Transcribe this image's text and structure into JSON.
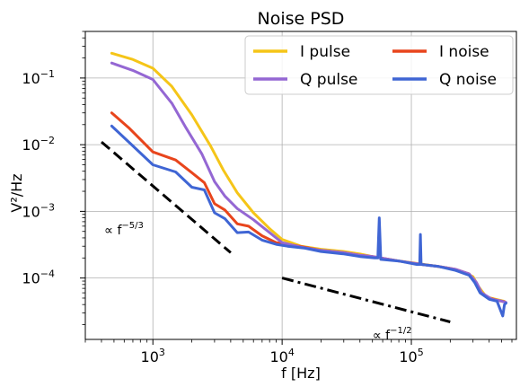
{
  "chart_data": {
    "type": "line",
    "title": "Noise PSD",
    "xlabel": "f [Hz]",
    "ylabel": "V²/Hz",
    "xscale": "log",
    "yscale": "log",
    "xlim": [
      300,
      650000
    ],
    "ylim": [
      1.2e-05,
      0.5
    ],
    "grid": true,
    "legend_position": "top-right",
    "x_ticks": [
      {
        "value": 1000,
        "mantissa": "10",
        "exp": "3"
      },
      {
        "value": 10000,
        "mantissa": "10",
        "exp": "4"
      },
      {
        "value": 100000,
        "mantissa": "10",
        "exp": "5"
      }
    ],
    "y_ticks": [
      {
        "value": 0.0001,
        "mantissa": "10",
        "exp": "−4"
      },
      {
        "value": 0.001,
        "mantissa": "10",
        "exp": "−3"
      },
      {
        "value": 0.01,
        "mantissa": "10",
        "exp": "−2"
      },
      {
        "value": 0.1,
        "mantissa": "10",
        "exp": "−1"
      }
    ],
    "series": [
      {
        "name": "I pulse",
        "color": "#f5c518",
        "points": [
          [
            480,
            0.235
          ],
          [
            700,
            0.19
          ],
          [
            1000,
            0.14
          ],
          [
            1400,
            0.075
          ],
          [
            2000,
            0.028
          ],
          [
            2800,
            0.0095
          ],
          [
            3500,
            0.0042
          ],
          [
            4500,
            0.0019
          ],
          [
            6000,
            0.00095
          ],
          [
            8000,
            0.00055
          ],
          [
            10000,
            0.00038
          ],
          [
            14000,
            0.0003
          ],
          [
            20000,
            0.00027
          ],
          [
            30000,
            0.00025
          ],
          [
            40000,
            0.00023
          ],
          [
            50000,
            0.00021
          ],
          [
            58000,
            0.0002
          ],
          [
            80000,
            0.00018
          ],
          [
            100000,
            0.00017
          ],
          [
            140000,
            0.000155
          ],
          [
            200000,
            0.00014
          ],
          [
            260000,
            0.00012
          ],
          [
            300000,
            0.000105
          ],
          [
            330000,
            7.5e-05
          ],
          [
            380000,
            5.2e-05
          ],
          [
            450000,
            4.8e-05
          ],
          [
            520000,
            4.5e-05
          ]
        ]
      },
      {
        "name": "I noise",
        "color": "#e8451c",
        "points": [
          [
            480,
            0.03
          ],
          [
            650,
            0.018
          ],
          [
            1000,
            0.0078
          ],
          [
            1500,
            0.0059
          ],
          [
            2000,
            0.0038
          ],
          [
            2500,
            0.0027
          ],
          [
            3000,
            0.0013
          ],
          [
            3600,
            0.00105
          ],
          [
            4500,
            0.00065
          ],
          [
            5500,
            0.0006
          ],
          [
            7000,
            0.00043
          ],
          [
            9000,
            0.00034
          ],
          [
            11000,
            0.00032
          ],
          [
            15000,
            0.00029
          ],
          [
            20000,
            0.00026
          ],
          [
            30000,
            0.00024
          ],
          [
            40000,
            0.00022
          ],
          [
            50000,
            0.00021
          ],
          [
            80000,
            0.00018
          ],
          [
            120000,
            0.00016
          ],
          [
            160000,
            0.00015
          ],
          [
            220000,
            0.000135
          ],
          [
            280000,
            0.000115
          ],
          [
            310000,
            9e-05
          ],
          [
            340000,
            6.2e-05
          ],
          [
            400000,
            5e-05
          ],
          [
            470000,
            4.6e-05
          ],
          [
            530000,
            4.4e-05
          ]
        ]
      },
      {
        "name": "Q pulse",
        "color": "#9467d3",
        "points": [
          [
            480,
            0.168
          ],
          [
            700,
            0.13
          ],
          [
            1000,
            0.095
          ],
          [
            1400,
            0.042
          ],
          [
            1800,
            0.018
          ],
          [
            2400,
            0.0072
          ],
          [
            3000,
            0.0028
          ],
          [
            3600,
            0.0017
          ],
          [
            4500,
            0.0011
          ],
          [
            6000,
            0.00075
          ],
          [
            8000,
            0.00048
          ],
          [
            10000,
            0.00034
          ],
          [
            14000,
            0.00029
          ],
          [
            20000,
            0.00026
          ],
          [
            30000,
            0.00024
          ],
          [
            40000,
            0.00022
          ],
          [
            50000,
            0.00021
          ],
          [
            80000,
            0.00018
          ],
          [
            120000,
            0.00016
          ],
          [
            160000,
            0.00015
          ],
          [
            220000,
            0.000135
          ],
          [
            280000,
            0.000115
          ],
          [
            320000,
            8.5e-05
          ],
          [
            350000,
            6e-05
          ],
          [
            420000,
            4.8e-05
          ],
          [
            500000,
            4.5e-05
          ],
          [
            540000,
            4.3e-05
          ]
        ]
      },
      {
        "name": "Q noise",
        "color": "#3f65d4",
        "points": [
          [
            480,
            0.019
          ],
          [
            650,
            0.011
          ],
          [
            1000,
            0.005
          ],
          [
            1500,
            0.0039
          ],
          [
            2000,
            0.0023
          ],
          [
            2500,
            0.0021
          ],
          [
            3000,
            0.00095
          ],
          [
            3600,
            0.00078
          ],
          [
            4500,
            0.00048
          ],
          [
            5500,
            0.00049
          ],
          [
            7000,
            0.00037
          ],
          [
            9000,
            0.00032
          ],
          [
            11000,
            0.0003
          ],
          [
            15000,
            0.00028
          ],
          [
            20000,
            0.00025
          ],
          [
            30000,
            0.00023
          ],
          [
            40000,
            0.00021
          ],
          [
            52000,
            0.0002
          ],
          [
            55000,
            0.0002
          ],
          [
            56500,
            0.0008
          ],
          [
            58000,
            0.00019
          ],
          [
            80000,
            0.00018
          ],
          [
            110000,
            0.00016
          ],
          [
            116000,
            0.00016
          ],
          [
            117500,
            0.00045
          ],
          [
            119000,
            0.00016
          ],
          [
            160000,
            0.00015
          ],
          [
            220000,
            0.00013
          ],
          [
            280000,
            0.00011
          ],
          [
            310000,
            8.5e-05
          ],
          [
            340000,
            6e-05
          ],
          [
            400000,
            4.8e-05
          ],
          [
            460000,
            4.5e-05
          ],
          [
            510000,
            2.7e-05
          ],
          [
            525000,
            4e-05
          ],
          [
            540000,
            4.2e-05
          ]
        ]
      }
    ],
    "reference_lines": [
      {
        "style": "dashed",
        "points": [
          [
            400,
            0.011
          ],
          [
            4000,
            0.00024
          ]
        ]
      },
      {
        "style": "dashdot",
        "points": [
          [
            10000,
            0.0001
          ],
          [
            200000,
            2.2e-05
          ]
        ]
      }
    ],
    "annotations": [
      {
        "id": "slope-53",
        "prefix": "∝ f",
        "exp": "−5/3",
        "x": 420,
        "y": 0.00045
      },
      {
        "id": "slope-12",
        "prefix": "∝ f",
        "exp": "−1/2",
        "x": 50000,
        "y": 1.2e-05
      }
    ],
    "colors": {
      "axis": "#000000",
      "grid": "#b0b0b0",
      "background": "#ffffff"
    }
  }
}
